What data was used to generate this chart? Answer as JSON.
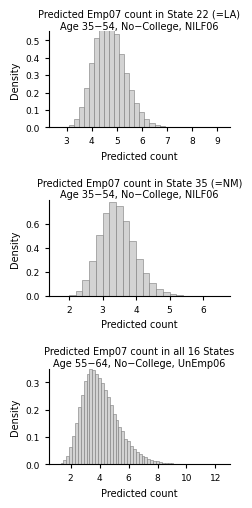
{
  "plots": [
    {
      "title1": "Predicted Emp07 count in State 22 (=LA)",
      "title2": "Age 35−54, No−College, NILF06",
      "mu": 4.72,
      "sigma": 0.62,
      "bin_width": 0.2,
      "xlim": [
        2.3,
        9.5
      ],
      "xticks": [
        3,
        4,
        5,
        6,
        7,
        8,
        9
      ],
      "ylim": [
        0,
        0.55
      ],
      "yticks": [
        0.0,
        0.1,
        0.2,
        0.3,
        0.4,
        0.5
      ],
      "xlabel": "Predicted count",
      "ylabel": "Density"
    },
    {
      "title1": "Predicted Emp07 count in State 35 (=NM)",
      "title2": "Age 35−54, No−College, NILF06",
      "mu": 3.45,
      "sigma": 0.52,
      "bin_width": 0.2,
      "xlim": [
        1.4,
        6.8
      ],
      "xticks": [
        2,
        3,
        4,
        5,
        6
      ],
      "ylim": [
        0,
        0.8
      ],
      "yticks": [
        0.0,
        0.2,
        0.4,
        0.6
      ],
      "xlabel": "Predicted count",
      "ylabel": "Density"
    },
    {
      "title1": "Predicted Emp07 count in all 16 States",
      "title2": "Age 55−64, No−College, UnEmp06",
      "mu": 4.1,
      "sigma": 1.3,
      "bin_width": 0.2,
      "xlim": [
        0.5,
        13.0
      ],
      "xticks": [
        2,
        4,
        6,
        8,
        10,
        12
      ],
      "ylim": [
        0,
        0.35
      ],
      "yticks": [
        0.0,
        0.1,
        0.2,
        0.3
      ],
      "xlabel": "Predicted count",
      "ylabel": "Density"
    }
  ],
  "bar_color": "#d3d3d3",
  "bar_edge_color": "#7a7a7a",
  "background_color": "#ffffff",
  "title_fontsize": 7.0,
  "label_fontsize": 7.0,
  "tick_fontsize": 6.5,
  "n_samples": 100000
}
